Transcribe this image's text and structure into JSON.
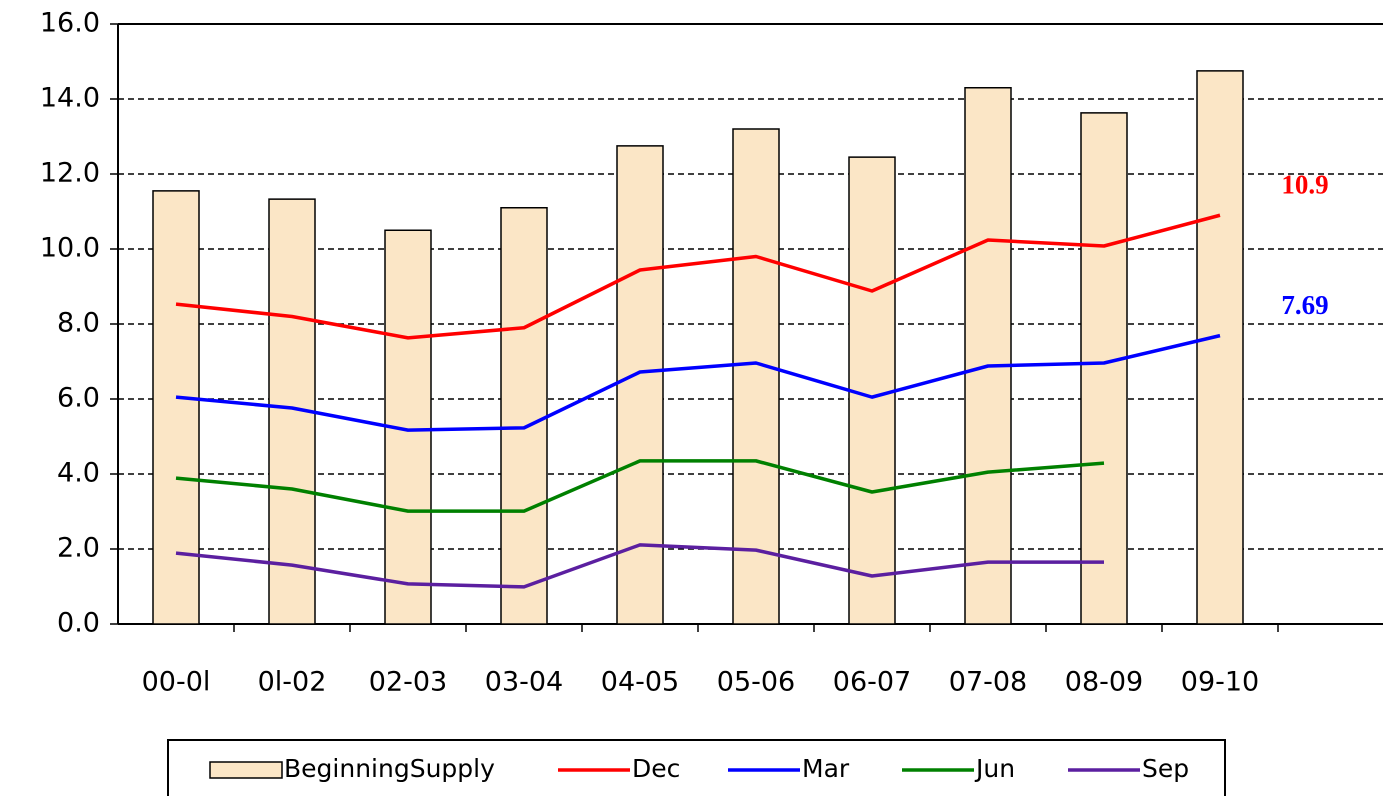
{
  "chart_data": {
    "type": "bar-line",
    "categories": [
      "00-0l",
      "0l-02",
      "02-03",
      "03-04",
      "04-05",
      "05-06",
      "06-07",
      "07-08",
      "08-09",
      "09-10",
      null
    ],
    "series": [
      {
        "name": "BeginningSupply",
        "type": "bar",
        "color": "#fbe6c6",
        "values": [
          11.55,
          11.33,
          10.5,
          11.1,
          12.75,
          13.2,
          12.45,
          14.3,
          13.63,
          14.75,
          null
        ]
      },
      {
        "name": "Dec",
        "type": "line",
        "color": "#ff0000",
        "label_last": true,
        "values": [
          8.53,
          8.2,
          7.63,
          7.9,
          9.44,
          9.8,
          8.88,
          10.24,
          10.08,
          10.9,
          null
        ]
      },
      {
        "name": "Mar",
        "type": "line",
        "color": "#0000ff",
        "label_last": true,
        "values": [
          6.05,
          5.76,
          5.17,
          5.23,
          6.72,
          6.96,
          6.05,
          6.88,
          6.96,
          7.69,
          null
        ]
      },
      {
        "name": "Jun",
        "type": "line",
        "color": "#008000",
        "values": [
          3.89,
          3.6,
          3.01,
          3.01,
          4.35,
          4.35,
          3.52,
          4.05,
          4.29,
          null,
          null
        ]
      },
      {
        "name": "Sep",
        "type": "line",
        "color": "#5b1fa0",
        "values": [
          1.89,
          1.57,
          1.07,
          0.99,
          2.11,
          1.97,
          1.28,
          1.65,
          1.65,
          null,
          null
        ]
      }
    ],
    "ylim": [
      0,
      16
    ],
    "yticks": [
      {
        "value": 0,
        "label": "0.0"
      },
      {
        "value": 2,
        "label": "2.0"
      },
      {
        "value": 4,
        "label": "4.0"
      },
      {
        "value": 6,
        "label": "6.0"
      },
      {
        "value": 8,
        "label": "8.0"
      },
      {
        "value": 10,
        "label": "10.0"
      },
      {
        "value": 12,
        "label": "12.0"
      },
      {
        "value": 14,
        "label": "14.0"
      },
      {
        "value": 16,
        "label": "16.0"
      }
    ],
    "grid": true,
    "legend": "bottom"
  }
}
